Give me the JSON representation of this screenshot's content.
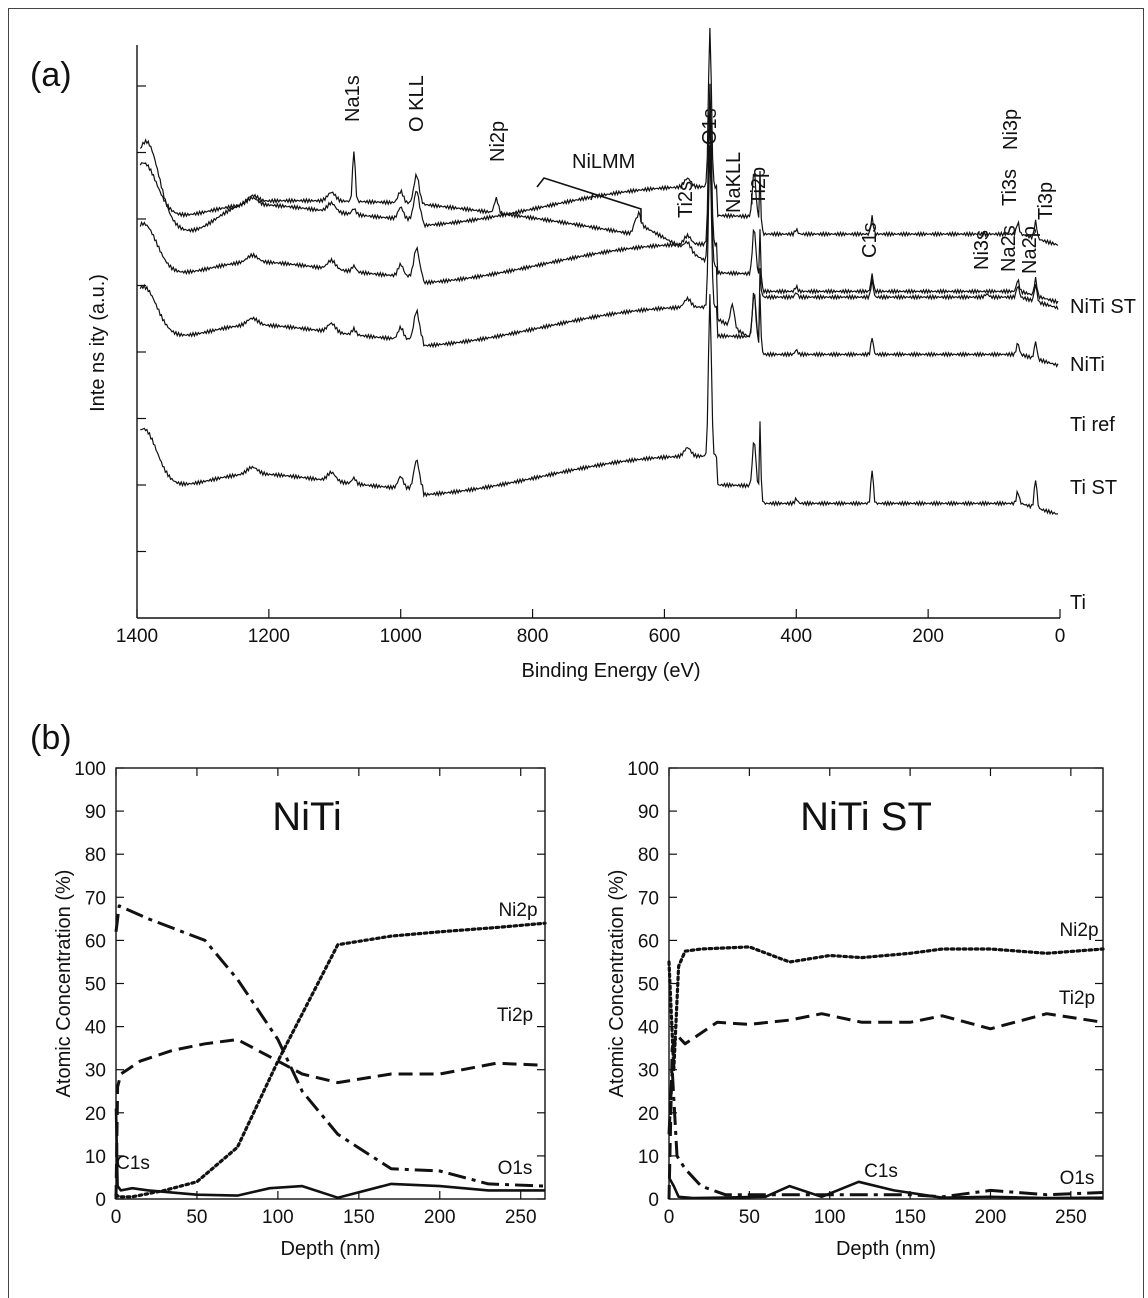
{
  "panel_a": {
    "label": "(a)",
    "chart_data": {
      "type": "line",
      "xlabel": "Binding Energy (eV)",
      "ylabel": "Inte ns ity (a.u.)",
      "xlim": [
        1400,
        0
      ],
      "x_reversed": true,
      "xticks": [
        1400,
        1200,
        1000,
        800,
        600,
        400,
        200,
        0
      ],
      "xtick_labels": [
        "1400",
        "1200",
        "1000",
        "800",
        "600",
        "400",
        "200",
        "0"
      ],
      "series": [
        {
          "name": "NiTi ST",
          "baseline": 0.78,
          "start_rise": 0.86
        },
        {
          "name": "NiTi",
          "baseline": 0.67,
          "start_rise": 0.29
        },
        {
          "name": "Ti ref",
          "baseline": 0.57,
          "start_rise": 0.27
        },
        {
          "name": "Ti ST",
          "baseline": 0.46,
          "start_rise": 0.27
        },
        {
          "name": "Ti",
          "baseline": 0.2,
          "start_rise": 0.31
        }
      ],
      "peaks": [
        {
          "label": "Na1s",
          "energy": 1071
        },
        {
          "label": "O KLL",
          "energy": 976
        },
        {
          "label": "Ni2p",
          "energy": 855
        },
        {
          "label": "NiLMM",
          "energy": 700
        },
        {
          "label": "Ti2s",
          "energy": 565
        },
        {
          "label": "O1s",
          "energy": 531
        },
        {
          "label": "NaKLL",
          "energy": 497
        },
        {
          "label": "Ti2p",
          "energy": 458
        },
        {
          "label": "C1s",
          "energy": 285
        },
        {
          "label": "Ni3s",
          "energy": 111
        },
        {
          "label": "Na2s",
          "energy": 64
        },
        {
          "label": "Ti3s",
          "energy": 62
        },
        {
          "label": "Na2p",
          "energy": 31
        },
        {
          "label": "Ni3p",
          "energy": 68
        },
        {
          "label": "Ti3p",
          "energy": 37
        }
      ]
    }
  },
  "panel_b": {
    "label": "(b)",
    "chart_data": [
      {
        "type": "line",
        "title": "NiTi",
        "xlabel": "Depth (nm)",
        "ylabel": "Atomic Concentration (%)",
        "xlim": [
          0,
          265
        ],
        "ylim": [
          0,
          100
        ],
        "xticks": [
          0,
          50,
          100,
          150,
          200,
          250
        ],
        "yticks": [
          0,
          10,
          20,
          30,
          40,
          50,
          60,
          70,
          80,
          90,
          100
        ],
        "series": [
          {
            "name": "Ni2p",
            "style": "dotted",
            "x": [
              0,
              2,
              10,
              30,
              50,
              75,
              100,
              137,
              170,
              200,
              235,
              265
            ],
            "y": [
              1,
              0.5,
              0.5,
              2,
              4,
              12,
              32,
              59,
              61,
              62,
              63,
              64
            ]
          },
          {
            "name": "Ti2p",
            "style": "dashed",
            "x": [
              0,
              1,
              3,
              15,
              35,
              55,
              75,
              100,
              115,
              137,
              170,
              200,
              235,
              265
            ],
            "y": [
              0,
              26,
              29,
              32,
              34.5,
              36,
              37,
              32,
              29,
              27,
              29,
              29,
              31.5,
              31
            ]
          },
          {
            "name": "O1s",
            "style": "dash-dot",
            "x": [
              0,
              2,
              20,
              55,
              75,
              100,
              115,
              137,
              170,
              200,
              230,
              265
            ],
            "y": [
              62,
              68,
              65,
              60,
              51,
              37,
              25,
              15,
              7,
              6.5,
              3.5,
              3
            ]
          },
          {
            "name": "C1s",
            "style": "solid",
            "x": [
              0,
              1,
              3,
              10,
              20,
              50,
              75,
              95,
              115,
              137,
              170,
              200,
              230,
              265
            ],
            "y": [
              21,
              3,
              2,
              2.5,
              2,
              1,
              0.8,
              2.5,
              3,
              0.3,
              3.5,
              3,
              2,
              2
            ]
          }
        ]
      },
      {
        "type": "line",
        "title": "NiTi ST",
        "xlabel": "Depth (nm)",
        "ylabel": "Atomic Concentration (%)",
        "xlim": [
          0,
          270
        ],
        "ylim": [
          0,
          100
        ],
        "xticks": [
          0,
          50,
          100,
          150,
          200,
          250
        ],
        "yticks": [
          0,
          10,
          20,
          30,
          40,
          50,
          60,
          70,
          80,
          90,
          100
        ],
        "series": [
          {
            "name": "Ni2p",
            "style": "dotted",
            "x": [
              0,
              3,
              6,
              10,
              20,
              50,
              75,
              100,
              120,
              150,
              170,
              200,
              235,
              270
            ],
            "y": [
              55,
              30,
              54,
              57.5,
              58,
              58.5,
              55,
              56.5,
              56,
              57,
              58,
              58,
              57,
              58
            ]
          },
          {
            "name": "Ti2p",
            "style": "dashed",
            "x": [
              0,
              2,
              5,
              10,
              30,
              50,
              75,
              95,
              120,
              150,
              170,
              200,
              235,
              270
            ],
            "y": [
              0,
              35,
              38,
              36,
              41,
              40.5,
              41.5,
              43,
              41,
              41,
              42.5,
              39.5,
              43,
              41
            ]
          },
          {
            "name": "O1s",
            "style": "dash-dot",
            "x": [
              0,
              2,
              5,
              10,
              20,
              35,
              60,
              95,
              120,
              150,
              170,
              200,
              235,
              270
            ],
            "y": [
              15,
              30,
              10,
              7,
              3,
              1,
              1,
              1,
              1,
              1,
              0.5,
              2,
              1,
              1.5
            ]
          },
          {
            "name": "C1s",
            "style": "solid",
            "x": [
              0,
              3,
              6,
              15,
              30,
              60,
              75,
              95,
              118,
              140,
              170,
              200,
              235,
              270
            ],
            "y": [
              5,
              3,
              0.5,
              0.2,
              0.3,
              0.5,
              3,
              0.5,
              4,
              2,
              0.3,
              0.5,
              0.2,
              0.3
            ]
          }
        ]
      }
    ]
  }
}
